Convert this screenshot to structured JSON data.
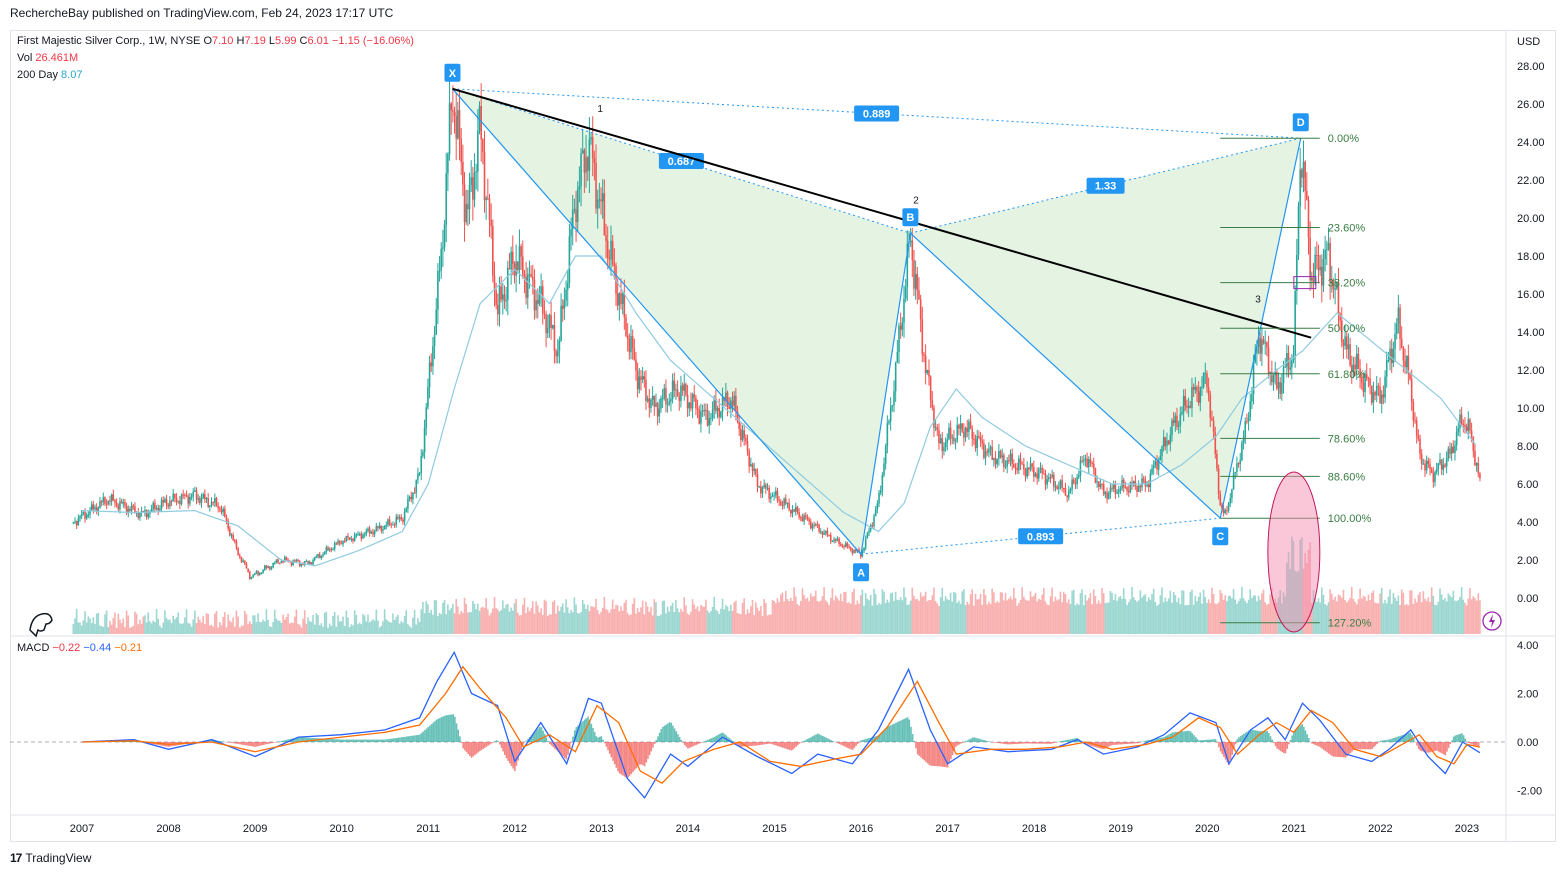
{
  "publish_line": "RechercheBay published on TradingView.com, Feb 24, 2023 17:17 UTC",
  "legend": {
    "symbol": "First Majestic Silver Corp., 1W, NYSE",
    "o_label": "O",
    "o_value": "7.10",
    "h_label": "H",
    "h_value": "7.19",
    "l_label": "L",
    "l_value": "5.99",
    "c_label": "C",
    "c_value": "6.01",
    "change": "−1.15 (−16.06%)",
    "vol_label": "Vol",
    "vol_value": "26.461M",
    "ma_label": "200 Day",
    "ma_value": "8.07",
    "macd_label": "MACD",
    "macd_hist": "−0.22",
    "macd_line": "−0.44",
    "macd_signal": "−0.21"
  },
  "footer_brand": "TradingView",
  "colors": {
    "up": "#26a69a",
    "down": "#ef5350",
    "ma": "#8fcbe0",
    "macd": "#2962ff",
    "signal": "#ff6d00",
    "pattern": "#2196f3",
    "fill": "#dff1dd"
  },
  "chart_data": [
    {
      "type": "candlestick",
      "title": "First Majestic Silver Corp., 1W, NYSE",
      "currency": "USD",
      "y_ticks": [
        "28.00",
        "26.00",
        "24.00",
        "22.00",
        "20.00",
        "18.00",
        "16.00",
        "14.00",
        "12.00",
        "10.00",
        "8.00",
        "6.00",
        "4.00",
        "2.00",
        "0.00"
      ],
      "ylim": [
        -2,
        29
      ],
      "x_ticks": [
        "2007",
        "2008",
        "2009",
        "2010",
        "2011",
        "2012",
        "2013",
        "2014",
        "2015",
        "2016",
        "2017",
        "2018",
        "2019",
        "2020",
        "2021",
        "2022",
        "2023"
      ],
      "price_path_weekly_approx": [
        [
          2006.9,
          4.0
        ],
        [
          2007.3,
          5.2
        ],
        [
          2007.7,
          4.4
        ],
        [
          2008.0,
          5.1
        ],
        [
          2008.3,
          5.4
        ],
        [
          2008.6,
          4.8
        ],
        [
          2008.8,
          2.4
        ],
        [
          2008.95,
          1.1
        ],
        [
          2009.3,
          2.0
        ],
        [
          2009.6,
          1.8
        ],
        [
          2010.0,
          3.0
        ],
        [
          2010.4,
          3.6
        ],
        [
          2010.7,
          4.2
        ],
        [
          2010.9,
          6.5
        ],
        [
          2011.0,
          11.0
        ],
        [
          2011.15,
          18.0
        ],
        [
          2011.28,
          26.8
        ],
        [
          2011.45,
          20.0
        ],
        [
          2011.6,
          24.8
        ],
        [
          2011.8,
          15.0
        ],
        [
          2012.0,
          18.0
        ],
        [
          2012.3,
          15.5
        ],
        [
          2012.5,
          13.0
        ],
        [
          2012.7,
          21.0
        ],
        [
          2012.85,
          24.0
        ],
        [
          2013.1,
          18.0
        ],
        [
          2013.4,
          12.0
        ],
        [
          2013.6,
          10.0
        ],
        [
          2013.9,
          11.0
        ],
        [
          2014.2,
          9.5
        ],
        [
          2014.5,
          10.5
        ],
        [
          2014.8,
          6.0
        ],
        [
          2015.1,
          5.0
        ],
        [
          2015.4,
          4.0
        ],
        [
          2015.7,
          3.0
        ],
        [
          2016.0,
          2.3
        ],
        [
          2016.2,
          5.0
        ],
        [
          2016.4,
          12.0
        ],
        [
          2016.57,
          19.0
        ],
        [
          2016.75,
          12.0
        ],
        [
          2016.9,
          8.0
        ],
        [
          2017.2,
          9.0
        ],
        [
          2017.5,
          7.5
        ],
        [
          2017.8,
          7.0
        ],
        [
          2018.1,
          6.5
        ],
        [
          2018.4,
          5.5
        ],
        [
          2018.6,
          7.5
        ],
        [
          2018.8,
          5.5
        ],
        [
          2019.0,
          5.8
        ],
        [
          2019.3,
          6.0
        ],
        [
          2019.6,
          9.0
        ],
        [
          2019.8,
          10.5
        ],
        [
          2020.0,
          11.5
        ],
        [
          2020.15,
          5.0
        ],
        [
          2020.2,
          4.2
        ],
        [
          2020.45,
          9.0
        ],
        [
          2020.6,
          14.0
        ],
        [
          2020.8,
          11.0
        ],
        [
          2021.0,
          13.0
        ],
        [
          2021.08,
          24.2
        ],
        [
          2021.2,
          17.0
        ],
        [
          2021.4,
          18.0
        ],
        [
          2021.6,
          13.0
        ],
        [
          2021.8,
          11.5
        ],
        [
          2022.0,
          10.5
        ],
        [
          2022.2,
          14.5
        ],
        [
          2022.35,
          11.0
        ],
        [
          2022.45,
          7.5
        ],
        [
          2022.6,
          6.5
        ],
        [
          2022.8,
          7.5
        ],
        [
          2022.95,
          9.5
        ],
        [
          2023.05,
          8.5
        ],
        [
          2023.15,
          6.01
        ]
      ],
      "ma_200_path_approx": [
        [
          2007.0,
          4.6
        ],
        [
          2007.6,
          4.5
        ],
        [
          2008.3,
          4.6
        ],
        [
          2008.8,
          3.8
        ],
        [
          2009.3,
          2.0
        ],
        [
          2009.7,
          1.7
        ],
        [
          2010.2,
          2.5
        ],
        [
          2010.7,
          3.5
        ],
        [
          2011.0,
          6.0
        ],
        [
          2011.3,
          11.0
        ],
        [
          2011.6,
          15.5
        ],
        [
          2012.0,
          17.3
        ],
        [
          2012.4,
          15.5
        ],
        [
          2012.7,
          18.0
        ],
        [
          2013.0,
          18.0
        ],
        [
          2013.4,
          15.0
        ],
        [
          2013.8,
          12.5
        ],
        [
          2014.3,
          10.5
        ],
        [
          2014.8,
          8.5
        ],
        [
          2015.3,
          6.5
        ],
        [
          2015.8,
          4.5
        ],
        [
          2016.2,
          3.5
        ],
        [
          2016.5,
          5.0
        ],
        [
          2016.8,
          9.0
        ],
        [
          2017.1,
          11.0
        ],
        [
          2017.4,
          9.5
        ],
        [
          2017.9,
          8.0
        ],
        [
          2018.4,
          7.0
        ],
        [
          2018.9,
          6.0
        ],
        [
          2019.3,
          6.0
        ],
        [
          2019.7,
          7.0
        ],
        [
          2020.1,
          8.5
        ],
        [
          2020.4,
          10.5
        ],
        [
          2020.8,
          12.0
        ],
        [
          2021.1,
          13.0
        ],
        [
          2021.5,
          15.0
        ],
        [
          2021.9,
          13.5
        ],
        [
          2022.3,
          12.0
        ],
        [
          2022.7,
          10.5
        ],
        [
          2023.1,
          8.07
        ]
      ],
      "harmonic_pattern": {
        "points": [
          {
            "label": "X",
            "x": 2011.28,
            "y": 26.8
          },
          {
            "label": "A",
            "x": 2016.0,
            "y": 2.3
          },
          {
            "label": "B",
            "x": 2016.57,
            "y": 19.2
          },
          {
            "label": "C",
            "x": 2020.15,
            "y": 4.2
          },
          {
            "label": "D",
            "x": 2021.08,
            "y": 24.2
          }
        ],
        "ratios": [
          {
            "label": "0.687",
            "between": "XB"
          },
          {
            "label": "0.889",
            "between": "XD"
          },
          {
            "label": "1.33",
            "between": "BD"
          },
          {
            "label": "0.893",
            "between": "AC"
          }
        ]
      },
      "trendline": {
        "from": [
          2011.28,
          26.8
        ],
        "to": [
          2021.2,
          13.7
        ],
        "touch_labels": [
          "1",
          "2",
          "3"
        ]
      },
      "fibonacci_levels": [
        {
          "label": "0.00%",
          "y": 24.2
        },
        {
          "label": "23.60%",
          "y": 19.5
        },
        {
          "label": "38.20%",
          "y": 16.6
        },
        {
          "label": "50.00%",
          "y": 14.2
        },
        {
          "label": "61.80%",
          "y": 11.8
        },
        {
          "label": "78.60%",
          "y": 8.4
        },
        {
          "label": "88.60%",
          "y": 6.4
        },
        {
          "label": "100.00%",
          "y": 4.2
        },
        {
          "label": "127.20%",
          "y": -1.3
        }
      ],
      "volume_label": "Vol 26.461M"
    },
    {
      "type": "line",
      "title": "MACD",
      "y_ticks": [
        "4.00",
        "2.00",
        "0.00",
        "-2.00"
      ],
      "ylim": [
        -3.0,
        4.5
      ],
      "series": [
        {
          "name": "MACD",
          "color": "#2962ff",
          "values_approx": [
            [
              2007.0,
              0.0
            ],
            [
              2007.6,
              0.1
            ],
            [
              2008.0,
              -0.3
            ],
            [
              2008.5,
              0.1
            ],
            [
              2009.0,
              -0.6
            ],
            [
              2009.5,
              0.2
            ],
            [
              2010.0,
              0.3
            ],
            [
              2010.5,
              0.5
            ],
            [
              2010.9,
              1.0
            ],
            [
              2011.1,
              2.5
            ],
            [
              2011.3,
              3.7
            ],
            [
              2011.5,
              2.0
            ],
            [
              2011.8,
              1.5
            ],
            [
              2012.0,
              -0.8
            ],
            [
              2012.3,
              0.8
            ],
            [
              2012.6,
              -0.9
            ],
            [
              2012.85,
              1.8
            ],
            [
              2013.0,
              1.6
            ],
            [
              2013.3,
              -1.5
            ],
            [
              2013.5,
              -2.3
            ],
            [
              2013.8,
              -0.5
            ],
            [
              2014.0,
              -1.0
            ],
            [
              2014.4,
              0.2
            ],
            [
              2014.8,
              -0.6
            ],
            [
              2015.2,
              -1.3
            ],
            [
              2015.5,
              -0.5
            ],
            [
              2015.9,
              -0.9
            ],
            [
              2016.2,
              0.5
            ],
            [
              2016.55,
              3.0
            ],
            [
              2016.8,
              0.5
            ],
            [
              2017.0,
              -0.9
            ],
            [
              2017.3,
              -0.2
            ],
            [
              2017.7,
              -0.4
            ],
            [
              2018.2,
              -0.3
            ],
            [
              2018.5,
              0.1
            ],
            [
              2018.8,
              -0.5
            ],
            [
              2019.2,
              -0.2
            ],
            [
              2019.5,
              0.3
            ],
            [
              2019.8,
              1.2
            ],
            [
              2020.1,
              0.8
            ],
            [
              2020.25,
              -0.9
            ],
            [
              2020.5,
              0.5
            ],
            [
              2020.7,
              1.0
            ],
            [
              2020.9,
              0.1
            ],
            [
              2021.1,
              1.6
            ],
            [
              2021.3,
              0.9
            ],
            [
              2021.6,
              -0.5
            ],
            [
              2021.9,
              -0.8
            ],
            [
              2022.1,
              -0.3
            ],
            [
              2022.35,
              0.5
            ],
            [
              2022.55,
              -0.6
            ],
            [
              2022.75,
              -1.3
            ],
            [
              2022.95,
              0.0
            ],
            [
              2023.15,
              -0.44
            ]
          ]
        },
        {
          "name": "Signal",
          "color": "#ff6d00",
          "values_approx": [
            [
              2007.0,
              0.0
            ],
            [
              2007.6,
              0.05
            ],
            [
              2008.0,
              -0.1
            ],
            [
              2008.5,
              0.0
            ],
            [
              2009.0,
              -0.4
            ],
            [
              2009.5,
              0.0
            ],
            [
              2010.0,
              0.2
            ],
            [
              2010.5,
              0.4
            ],
            [
              2010.9,
              0.7
            ],
            [
              2011.2,
              2.0
            ],
            [
              2011.4,
              3.1
            ],
            [
              2011.6,
              2.2
            ],
            [
              2011.9,
              1.0
            ],
            [
              2012.1,
              -0.2
            ],
            [
              2012.4,
              0.3
            ],
            [
              2012.7,
              -0.4
            ],
            [
              2012.95,
              1.5
            ],
            [
              2013.2,
              0.8
            ],
            [
              2013.45,
              -1.2
            ],
            [
              2013.7,
              -1.7
            ],
            [
              2013.95,
              -0.8
            ],
            [
              2014.3,
              -0.3
            ],
            [
              2014.6,
              0.0
            ],
            [
              2014.95,
              -0.8
            ],
            [
              2015.3,
              -1.0
            ],
            [
              2015.7,
              -0.7
            ],
            [
              2016.0,
              -0.5
            ],
            [
              2016.3,
              0.6
            ],
            [
              2016.65,
              2.5
            ],
            [
              2016.9,
              0.8
            ],
            [
              2017.1,
              -0.5
            ],
            [
              2017.5,
              -0.3
            ],
            [
              2017.9,
              -0.3
            ],
            [
              2018.3,
              -0.2
            ],
            [
              2018.6,
              0.0
            ],
            [
              2018.9,
              -0.3
            ],
            [
              2019.3,
              -0.1
            ],
            [
              2019.6,
              0.2
            ],
            [
              2019.9,
              1.0
            ],
            [
              2020.15,
              0.6
            ],
            [
              2020.35,
              -0.5
            ],
            [
              2020.6,
              0.3
            ],
            [
              2020.8,
              0.8
            ],
            [
              2021.0,
              0.4
            ],
            [
              2021.2,
              1.3
            ],
            [
              2021.45,
              0.8
            ],
            [
              2021.7,
              -0.3
            ],
            [
              2022.0,
              -0.6
            ],
            [
              2022.2,
              -0.2
            ],
            [
              2022.45,
              0.3
            ],
            [
              2022.65,
              -0.6
            ],
            [
              2022.85,
              -0.9
            ],
            [
              2023.0,
              -0.1
            ],
            [
              2023.15,
              -0.21
            ]
          ]
        }
      ]
    }
  ]
}
